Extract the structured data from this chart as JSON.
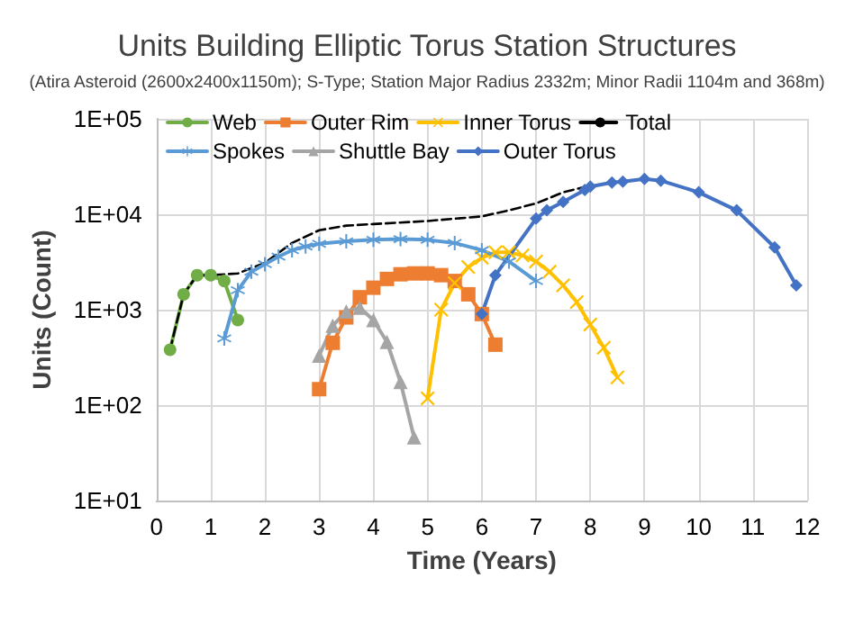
{
  "chart_data": {
    "type": "line",
    "title": "Units Building Elliptic Torus Station Structures",
    "subtitle": "(Atira Asteroid (2600x2400x1150m); S-Type; Station Major Radius 2332m; Minor Radii 1104m and 368m)",
    "xlabel": "Time (Years)",
    "ylabel": "Units (Count)",
    "log": "y",
    "grid": true,
    "legend": "top left",
    "xlim": [
      0,
      12
    ],
    "xticks": [
      0,
      1,
      2,
      3,
      4,
      5,
      6,
      7,
      8,
      9,
      10,
      11,
      12
    ],
    "ylim": [
      10,
      100000
    ],
    "yticks": [
      {
        "value": 10,
        "label": "1E+01"
      },
      {
        "value": 100,
        "label": "1E+02"
      },
      {
        "value": 1000,
        "label": "1E+03"
      },
      {
        "value": 10000,
        "label": "1E+04"
      },
      {
        "value": 100000,
        "label": "1E+05"
      }
    ],
    "series": [
      {
        "name": "Web",
        "color": "#70ad47",
        "marker": "circle",
        "x": [
          0.25,
          0.5,
          0.75,
          1.0,
          1.25,
          1.5
        ],
        "values": [
          380,
          1450,
          2300,
          2300,
          2000,
          780
        ]
      },
      {
        "name": "Outer Rim",
        "color": "#ed7d31",
        "marker": "square",
        "x": [
          3.0,
          3.25,
          3.5,
          3.75,
          4.0,
          4.25,
          4.5,
          4.75,
          5.0,
          5.25,
          5.5,
          5.75,
          6.0,
          6.25
        ],
        "values": [
          147,
          450,
          830,
          1350,
          1700,
          2100,
          2350,
          2400,
          2400,
          2300,
          2000,
          1450,
          900,
          430
        ]
      },
      {
        "name": "Inner Torus",
        "color": "#ffc000",
        "marker": "cross",
        "x": [
          5.0,
          5.25,
          5.5,
          5.75,
          6.0,
          6.25,
          6.5,
          6.75,
          7.0,
          7.25,
          7.5,
          7.75,
          8.0,
          8.25,
          8.5
        ],
        "values": [
          118,
          1000,
          1900,
          2800,
          3500,
          4000,
          4000,
          3700,
          3200,
          2500,
          1800,
          1200,
          700,
          400,
          195
        ]
      },
      {
        "name": "Total",
        "color": "#000000",
        "marker": "none",
        "line_style": "dashed",
        "x": [
          0.25,
          0.5,
          0.75,
          1.0,
          1.5,
          2.0,
          2.5,
          3.0,
          3.5,
          4.0,
          5.0,
          6.0,
          6.5,
          7.0,
          7.5,
          8.0
        ],
        "values": [
          380,
          1450,
          2300,
          2300,
          2400,
          3100,
          5000,
          6800,
          7600,
          7900,
          8500,
          9500,
          11000,
          13000,
          17000,
          20000
        ]
      },
      {
        "name": "Spokes",
        "color": "#5b9bd5",
        "marker": "star",
        "x": [
          1.25,
          1.5,
          1.75,
          2.0,
          2.25,
          2.5,
          2.75,
          3.0,
          3.5,
          4.0,
          4.5,
          5.0,
          5.5,
          6.0,
          6.5,
          7.0
        ],
        "values": [
          500,
          1600,
          2500,
          3000,
          3600,
          4200,
          4600,
          4900,
          5200,
          5400,
          5500,
          5400,
          5000,
          4200,
          3200,
          2000
        ]
      },
      {
        "name": "Shuttle Bay",
        "color": "#a5a5a5",
        "marker": "triangle",
        "x": [
          3.0,
          3.25,
          3.5,
          3.75,
          4.0,
          4.25,
          4.5,
          4.75
        ],
        "values": [
          330,
          680,
          960,
          1050,
          780,
          460,
          175,
          46
        ]
      },
      {
        "name": "Outer Torus",
        "color": "#4472c4",
        "marker": "diamond",
        "x": [
          6.0,
          6.25,
          7.0,
          7.2,
          7.5,
          7.9,
          8.0,
          8.4,
          8.6,
          9.0,
          9.3,
          10.0,
          10.7,
          11.4,
          11.8
        ],
        "values": [
          900,
          2300,
          9000,
          11000,
          13500,
          18000,
          19500,
          21500,
          22000,
          23500,
          22500,
          17000,
          11000,
          4500,
          1800
        ]
      }
    ]
  }
}
